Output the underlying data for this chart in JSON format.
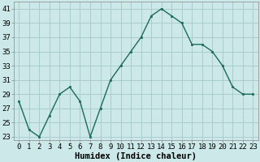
{
  "x": [
    0,
    1,
    2,
    3,
    4,
    5,
    6,
    7,
    8,
    9,
    10,
    11,
    12,
    13,
    14,
    15,
    16,
    17,
    18,
    19,
    20,
    21,
    22,
    23
  ],
  "y": [
    28,
    24,
    23,
    26,
    29,
    30,
    28,
    23,
    27,
    31,
    33,
    35,
    37,
    40,
    41,
    40,
    39,
    36,
    36,
    35,
    33,
    30,
    29,
    29
  ],
  "xlabel": "Humidex (Indice chaleur)",
  "ylim": [
    22.5,
    42
  ],
  "yticks": [
    23,
    25,
    27,
    29,
    31,
    33,
    35,
    37,
    39,
    41
  ],
  "line_color": "#1a6b5a",
  "marker_color": "#1a6b5a",
  "bg_color": "#cce8e8",
  "grid_color": "#aacccc",
  "tick_fontsize": 6.5,
  "label_fontsize": 7.5
}
